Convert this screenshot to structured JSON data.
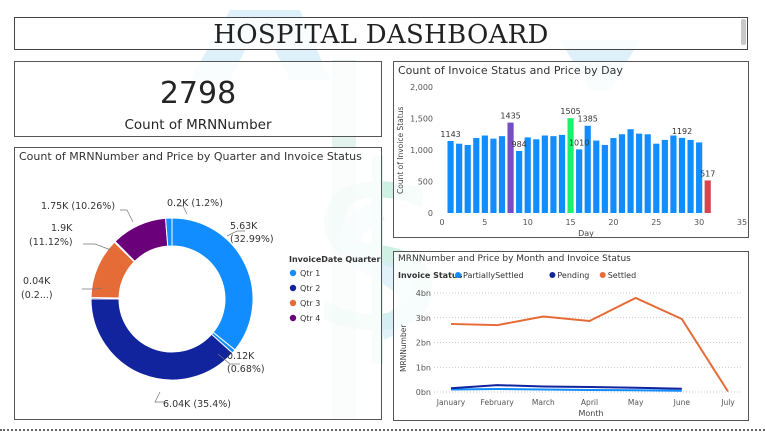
{
  "dashboard": {
    "title": "HOSPITAL DASHBOARD"
  },
  "card": {
    "value": "2798",
    "label": "Count of MRNNumber"
  },
  "donut": {
    "title": "Count of MRNNumber and Price by Quarter and Invoice Status",
    "legend_title": "InvoiceDate Quarter",
    "legend": [
      {
        "label": "Qtr 1",
        "color": "#118DFF"
      },
      {
        "label": "Qtr 2",
        "color": "#12239E"
      },
      {
        "label": "Qtr 3",
        "color": "#E66C37"
      },
      {
        "label": "Qtr 4",
        "color": "#6B007B"
      }
    ],
    "labels": [
      {
        "line1": "5.63K",
        "line2": "(32.99%)"
      },
      {
        "line1": "0.12K",
        "line2": "(0.68%)"
      },
      {
        "line1": "6.04K (35.4%)",
        "line2": ""
      },
      {
        "line1": "0.04K",
        "line2": "(0.2...)"
      },
      {
        "line1": "1.9K",
        "line2": "(11.12%)"
      },
      {
        "line1": "1.75K (10.26%)",
        "line2": ""
      },
      {
        "line1": "0.2K (1.2%)",
        "line2": ""
      }
    ]
  },
  "bar_chart": {
    "title": "Count of Invoice Status and Price by Day",
    "ylabel": "Count of Invoice Status",
    "xlabel": "Day"
  },
  "line_chart": {
    "title": "MRNNumber and Price by Month and Invoice Status",
    "legend_title": "Invoice Status",
    "ylabel": "MRNNumber",
    "xlabel": "Month"
  },
  "chart_data": [
    {
      "type": "pie",
      "categories": [
        "Qtr 1",
        "Qtr 1",
        "Qtr 2",
        "Qtr 2",
        "Qtr 3",
        "Qtr 3",
        "Qtr 4",
        "Qtr 4"
      ],
      "values": [
        5.63,
        0.12,
        6.04,
        0.04,
        1.9,
        0.03,
        1.75,
        0.2
      ],
      "colors": [
        "#118DFF",
        "#118DFF",
        "#12239E",
        "#12239E",
        "#E66C37",
        "#E66C37",
        "#6B007B",
        "#118DFF"
      ],
      "unit": "K",
      "title": "Count of MRNNumber and Price by Quarter and Invoice Status",
      "legend_placement": "right"
    },
    {
      "type": "bar",
      "x": [
        1,
        2,
        3,
        4,
        5,
        6,
        7,
        8,
        9,
        10,
        11,
        12,
        13,
        14,
        15,
        16,
        17,
        18,
        19,
        20,
        21,
        22,
        23,
        24,
        25,
        26,
        27,
        28,
        29,
        30,
        31
      ],
      "values": [
        1143,
        1100,
        1080,
        1190,
        1230,
        1180,
        1220,
        1435,
        984,
        1200,
        1170,
        1230,
        1220,
        1240,
        1505,
        1010,
        1385,
        1150,
        1080,
        1190,
        1250,
        1330,
        1260,
        1250,
        1100,
        1160,
        1230,
        1192,
        1160,
        1120,
        517
      ],
      "colors": [
        "#118DFF",
        "#118DFF",
        "#118DFF",
        "#118DFF",
        "#118DFF",
        "#118DFF",
        "#118DFF",
        "#744EC2",
        "#118DFF",
        "#118DFF",
        "#118DFF",
        "#118DFF",
        "#118DFF",
        "#118DFF",
        "#1AF26B",
        "#118DFF",
        "#118DFF",
        "#118DFF",
        "#118DFF",
        "#118DFF",
        "#118DFF",
        "#118DFF",
        "#118DFF",
        "#118DFF",
        "#118DFF",
        "#118DFF",
        "#118DFF",
        "#118DFF",
        "#118DFF",
        "#118DFF",
        "#D64550"
      ],
      "data_labels": [
        {
          "day": 1,
          "text": "1143"
        },
        {
          "day": 8,
          "text": "1435"
        },
        {
          "day": 9,
          "text": "984"
        },
        {
          "day": 15,
          "text": "1505"
        },
        {
          "day": 16,
          "text": "1010"
        },
        {
          "day": 17,
          "text": "1385"
        },
        {
          "day": 28,
          "text": "1192"
        },
        {
          "day": 31,
          "text": "517"
        }
      ],
      "xticks": [
        "0",
        "5",
        "10",
        "15",
        "20",
        "25",
        "30",
        "35"
      ],
      "yticks": [
        "0",
        "500",
        "1,000",
        "1,500",
        "2,000"
      ],
      "xlim": [
        0,
        35
      ],
      "ylim": [
        0,
        2000
      ],
      "xlabel": "Day",
      "ylabel": "Count of Invoice Status",
      "title": "Count of Invoice Status and Price by Day"
    },
    {
      "type": "line",
      "categories": [
        "January",
        "February",
        "March",
        "April",
        "May",
        "June",
        "July"
      ],
      "yticks": [
        "0bn",
        "1bn",
        "2bn",
        "3bn",
        "4bn"
      ],
      "ylim": [
        0,
        4
      ],
      "unit": "bn",
      "series": [
        {
          "name": "PartiallySettled",
          "color": "#118DFF",
          "values": [
            0.1,
            0.12,
            0.1,
            0.08,
            0.07,
            0.05,
            null
          ]
        },
        {
          "name": "Pending",
          "color": "#12239E",
          "values": [
            0.15,
            0.28,
            0.22,
            0.2,
            0.17,
            0.13,
            null
          ]
        },
        {
          "name": "Settled",
          "color": "#E66C37",
          "values": [
            2.75,
            2.7,
            3.05,
            2.87,
            3.8,
            2.95,
            0.02
          ]
        }
      ],
      "xlabel": "Month",
      "ylabel": "MRNNumber",
      "title": "MRNNumber and Price by Month and Invoice Status",
      "legend_placement": "top-left",
      "grid": true
    }
  ]
}
